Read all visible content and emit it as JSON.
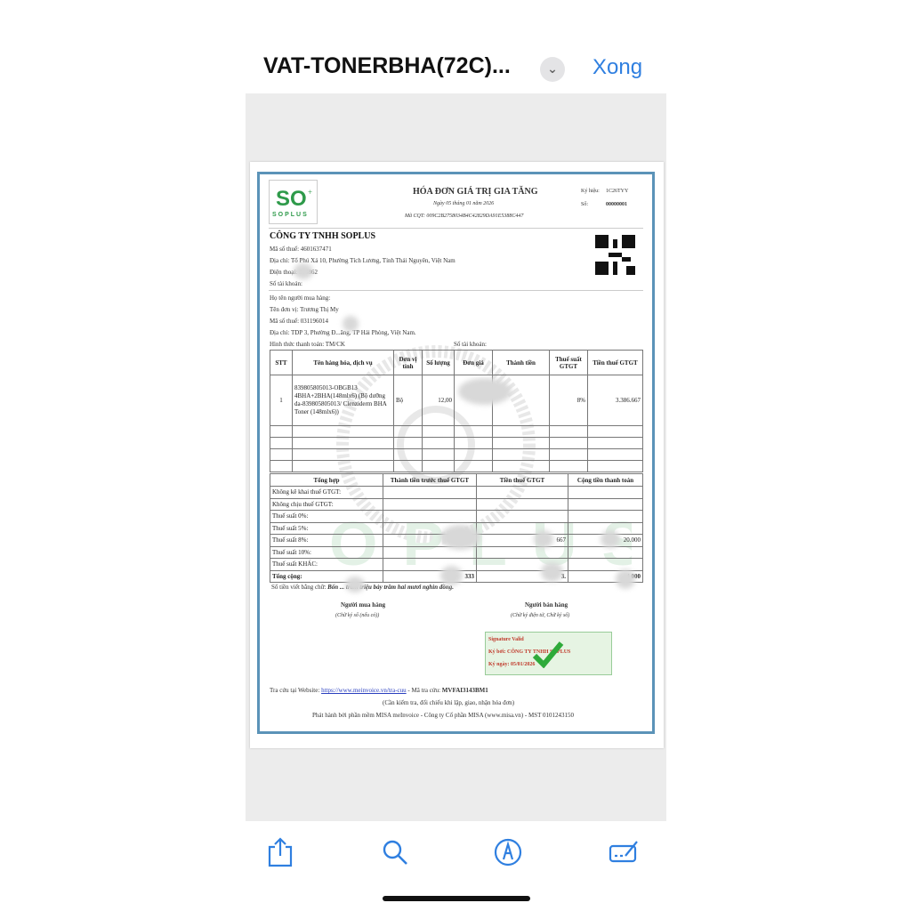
{
  "topbar": {
    "title": "VAT-TONERBHA(72C)...",
    "done": "Xong"
  },
  "invoice": {
    "logo_text": "SOPLUS",
    "title": "HÓA ĐƠN GIÁ TRỊ GIA TĂNG",
    "date": "Ngày 05 tháng 01 năm 2026",
    "cqt": "Mã CQT: 009C2B2758034B4C42829DA91E5388C447",
    "symbol_label": "Ký hiệu:",
    "symbol": "1C26TYY",
    "number_label": "Số:",
    "number": "00000001",
    "seller": {
      "name": "CÔNG TY TNHH SOPLUS",
      "tax": "Mã số thuế: 4601637471",
      "address": "Địa chỉ: Tổ Phú Xá 10, Phường Tích Lương, Tỉnh Thái Nguyên, Việt Nam",
      "phone": "Điện thoại: 518862",
      "account": "Số tài khoản:"
    },
    "buyer": {
      "name": "Họ tên người mua hàng:",
      "unit": "Tên đơn vị: Trương Thị My",
      "tax": "Mã số thuế: 031196014",
      "address": "Địa chỉ: TDP 3, Phường Đ...ăng, TP Hải Phòng, Việt Nam.",
      "payment": "Hình thức thanh toán: TM/CK",
      "account": "Số tài khoản:"
    },
    "items_header": [
      "STT",
      "Tên hàng hóa, dịch vụ",
      "Đơn vị tính",
      "Số lượng",
      "Đơn giá",
      "Thành tiền",
      "Thuế suất GTGT",
      "Tiền thuế GTGT"
    ],
    "items": [
      {
        "stt": "1",
        "name": "839805805013-OBGB13 4BHA+2BHA(148mlx6) (Bộ dưỡng da-839805805013/ Clenziderm BHA Toner (148mlx6))",
        "unit": "Bộ",
        "qty": "12,00",
        "price": "",
        "amount": "",
        "rate": "8%",
        "tax": "3.386.667"
      }
    ],
    "summary_header": [
      "Tổng hợp",
      "Thành tiền trước thuế GTGT",
      "Tiền thuế GTGT",
      "Cộng tiền thanh toán"
    ],
    "summary_rows": [
      {
        "label": "Không kê khai thuế GTGT:",
        "pre": "",
        "tax": "",
        "total": ""
      },
      {
        "label": "Không chịu thuế GTGT:",
        "pre": "",
        "tax": "",
        "total": ""
      },
      {
        "label": "Thuế suất 0%:",
        "pre": "",
        "tax": "",
        "total": ""
      },
      {
        "label": "Thuế suất 5%:",
        "pre": "",
        "tax": "",
        "total": ""
      },
      {
        "label": "Thuế suất 8%:",
        "pre": "",
        "tax": "667",
        "total": "20.000"
      },
      {
        "label": "Thuế suất 10%:",
        "pre": "",
        "tax": "",
        "total": ""
      },
      {
        "label": "Thuế suất KHÁC:",
        "pre": "",
        "tax": "",
        "total": ""
      },
      {
        "label": "Tổng cộng:",
        "pre": "333",
        "tax": "3.",
        "total": "4 000"
      }
    ],
    "in_words_label": "Số tiền viết bằng chữ:",
    "in_words": "Bốn ... trăm triệu bảy trăm hai mươi nghìn đồng.",
    "buyer_sign": "Người mua hàng",
    "buyer_sign_note": "(Chữ ký số (nếu có))",
    "seller_sign": "Người bán hàng",
    "seller_sign_note": "(Chữ ký điện tử, Chữ ký số)",
    "signature": {
      "valid": "Signature Valid",
      "by": "Ký bởi: CÔNG TY TNHH SOPLUS",
      "date": "Ký ngày: 05/01/2026"
    },
    "lookup_prefix": "Tra cứu tại Website:",
    "lookup_url": "https://www.meinvoice.vn/tra-cuu",
    "lookup_code_label": "- Mã tra cứu:",
    "lookup_code": "MVFAI3143BM1",
    "note": "(Cần kiểm tra, đối chiếu khi lập, giao, nhận hóa đơn)",
    "publisher": "Phát hành bởi phần mềm MISA meInvoice - Công ty Cổ phần MISA (www.misa.vn) - MST 0101243150",
    "watermark": "SOPLUS",
    "watermark_tagline": "Skin Care Beauty Bright"
  },
  "toolbar": {
    "icons": [
      "share-icon",
      "search-icon",
      "markup-icon",
      "signature-icon"
    ]
  },
  "colors": {
    "accent": "#2f7fe0",
    "frame": "#5b93b8",
    "brand_green": "#2e9a4a",
    "signature_red": "#c0392b"
  }
}
